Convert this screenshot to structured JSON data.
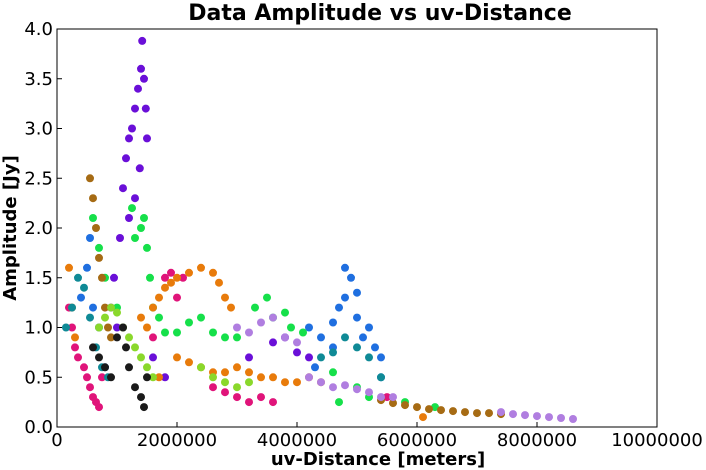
{
  "chart_data": {
    "type": "scatter",
    "title": "Data Amplitude vs uv-Distance",
    "xlabel": "uv-Distance [meters]",
    "ylabel": "Amplitude [Jy]",
    "xlim": [
      0,
      10000000
    ],
    "ylim": [
      0,
      4.0
    ],
    "xticks": [
      "0",
      "2000000",
      "4000000",
      "6000000",
      "8000000",
      "10000000"
    ],
    "xtick_values": [
      0,
      2000000,
      4000000,
      6000000,
      8000000,
      10000000
    ],
    "yticks": [
      "0.0",
      "0.5",
      "1.0",
      "1.5",
      "2.0",
      "2.5",
      "3.0",
      "3.5",
      "4.0"
    ],
    "ytick_values": [
      0,
      0.5,
      1.0,
      1.5,
      2.0,
      2.5,
      3.0,
      3.5,
      4.0
    ],
    "grid": false,
    "legend": "none",
    "series": [
      {
        "color": "#6a0fd8",
        "points": [
          [
            1100000,
            2.4
          ],
          [
            1150000,
            2.7
          ],
          [
            1200000,
            2.9
          ],
          [
            1250000,
            3.0
          ],
          [
            1300000,
            3.2
          ],
          [
            1350000,
            3.4
          ],
          [
            1400000,
            3.6
          ],
          [
            1420000,
            3.88
          ],
          [
            1450000,
            3.5
          ],
          [
            1480000,
            3.2
          ],
          [
            1500000,
            2.9
          ],
          [
            1380000,
            2.6
          ],
          [
            1300000,
            2.3
          ],
          [
            1200000,
            2.1
          ],
          [
            1050000,
            1.9
          ],
          [
            950000,
            1.5
          ],
          [
            900000,
            1.2
          ],
          [
            1000000,
            1.0
          ],
          [
            1600000,
            0.7
          ],
          [
            1800000,
            0.5
          ],
          [
            3600000,
            0.85
          ],
          [
            3800000,
            0.9
          ],
          [
            4000000,
            0.75
          ],
          [
            4200000,
            0.7
          ],
          [
            3200000,
            0.7
          ]
        ]
      },
      {
        "color": "#1f6fe0",
        "points": [
          [
            400000,
            1.3
          ],
          [
            500000,
            1.6
          ],
          [
            550000,
            1.9
          ],
          [
            600000,
            1.2
          ],
          [
            700000,
            1.0
          ],
          [
            800000,
            0.6
          ],
          [
            4200000,
            1.0
          ],
          [
            4400000,
            0.9
          ],
          [
            4600000,
            1.05
          ],
          [
            4700000,
            1.2
          ],
          [
            4800000,
            1.3
          ],
          [
            4900000,
            1.5
          ],
          [
            4800000,
            1.6
          ],
          [
            5000000,
            1.1
          ],
          [
            5100000,
            0.9
          ],
          [
            5200000,
            1.0
          ],
          [
            5300000,
            0.8
          ],
          [
            5400000,
            0.7
          ],
          [
            5000000,
            1.35
          ],
          [
            4600000,
            0.8
          ],
          [
            4300000,
            0.6
          ],
          [
            5400000,
            0.5
          ]
        ]
      },
      {
        "color": "#16e04a",
        "points": [
          [
            600000,
            2.1
          ],
          [
            700000,
            1.8
          ],
          [
            800000,
            1.5
          ],
          [
            1000000,
            1.2
          ],
          [
            1250000,
            2.2
          ],
          [
            1300000,
            1.9
          ],
          [
            1400000,
            2.0
          ],
          [
            1450000,
            2.1
          ],
          [
            1500000,
            1.8
          ],
          [
            1550000,
            1.5
          ],
          [
            1600000,
            1.2
          ],
          [
            1700000,
            1.1
          ],
          [
            1800000,
            0.95
          ],
          [
            2000000,
            0.95
          ],
          [
            2200000,
            1.05
          ],
          [
            2400000,
            1.1
          ],
          [
            2600000,
            0.95
          ],
          [
            2800000,
            0.9
          ],
          [
            3000000,
            0.9
          ],
          [
            3300000,
            1.2
          ],
          [
            3500000,
            1.3
          ],
          [
            3600000,
            1.1
          ],
          [
            3800000,
            1.15
          ],
          [
            3900000,
            1.0
          ],
          [
            4100000,
            0.95
          ],
          [
            4600000,
            0.55
          ],
          [
            5000000,
            0.4
          ],
          [
            5200000,
            0.3
          ],
          [
            5800000,
            0.25
          ],
          [
            6300000,
            0.2
          ],
          [
            4700000,
            0.25
          ]
        ]
      },
      {
        "color": "#e0147a",
        "points": [
          [
            200000,
            1.2
          ],
          [
            250000,
            1.0
          ],
          [
            300000,
            0.8
          ],
          [
            350000,
            0.7
          ],
          [
            450000,
            0.6
          ],
          [
            500000,
            0.5
          ],
          [
            550000,
            0.4
          ],
          [
            600000,
            0.3
          ],
          [
            650000,
            0.25
          ],
          [
            700000,
            0.2
          ],
          [
            750000,
            0.5
          ],
          [
            1800000,
            1.5
          ],
          [
            1900000,
            1.55
          ],
          [
            2000000,
            1.3
          ],
          [
            2100000,
            1.5
          ],
          [
            1600000,
            0.9
          ],
          [
            2600000,
            0.4
          ],
          [
            2800000,
            0.35
          ],
          [
            3000000,
            0.3
          ],
          [
            3200000,
            0.25
          ],
          [
            3400000,
            0.3
          ],
          [
            3600000,
            0.25
          ],
          [
            5500000,
            0.3
          ]
        ]
      },
      {
        "color": "#e87b0b",
        "points": [
          [
            200000,
            1.6
          ],
          [
            250000,
            1.2
          ],
          [
            300000,
            0.9
          ],
          [
            1400000,
            1.1
          ],
          [
            1500000,
            1.0
          ],
          [
            1600000,
            1.2
          ],
          [
            1700000,
            1.3
          ],
          [
            1800000,
            1.4
          ],
          [
            1900000,
            1.45
          ],
          [
            2000000,
            1.5
          ],
          [
            2200000,
            1.55
          ],
          [
            2400000,
            1.6
          ],
          [
            2600000,
            1.55
          ],
          [
            2700000,
            1.45
          ],
          [
            2800000,
            1.3
          ],
          [
            2900000,
            1.2
          ],
          [
            2000000,
            0.7
          ],
          [
            2200000,
            0.65
          ],
          [
            2400000,
            0.6
          ],
          [
            2600000,
            0.55
          ],
          [
            2800000,
            0.55
          ],
          [
            3000000,
            0.6
          ],
          [
            3200000,
            0.55
          ],
          [
            3400000,
            0.5
          ],
          [
            3600000,
            0.5
          ],
          [
            3800000,
            0.45
          ],
          [
            4000000,
            0.45
          ],
          [
            4200000,
            0.5
          ],
          [
            4400000,
            0.45
          ],
          [
            1700000,
            0.5
          ],
          [
            6100000,
            0.1
          ]
        ]
      },
      {
        "color": "#a66b14",
        "points": [
          [
            550000,
            2.5
          ],
          [
            600000,
            2.3
          ],
          [
            650000,
            2.0
          ],
          [
            700000,
            1.7
          ],
          [
            750000,
            1.5
          ],
          [
            800000,
            1.2
          ],
          [
            850000,
            1.0
          ],
          [
            900000,
            0.9
          ],
          [
            5400000,
            0.27
          ],
          [
            5600000,
            0.24
          ],
          [
            5800000,
            0.22
          ],
          [
            6000000,
            0.2
          ],
          [
            6200000,
            0.18
          ],
          [
            6400000,
            0.17
          ],
          [
            6600000,
            0.16
          ],
          [
            6800000,
            0.15
          ],
          [
            7000000,
            0.14
          ],
          [
            7200000,
            0.14
          ],
          [
            7400000,
            0.13
          ]
        ]
      },
      {
        "color": "#b07ee0",
        "points": [
          [
            3000000,
            1.0
          ],
          [
            3200000,
            0.95
          ],
          [
            3400000,
            1.05
          ],
          [
            3600000,
            1.1
          ],
          [
            3800000,
            0.9
          ],
          [
            4000000,
            0.85
          ],
          [
            4200000,
            0.5
          ],
          [
            4400000,
            0.45
          ],
          [
            4600000,
            0.4
          ],
          [
            4800000,
            0.42
          ],
          [
            5000000,
            0.38
          ],
          [
            5200000,
            0.35
          ],
          [
            5400000,
            0.3
          ],
          [
            5600000,
            0.3
          ],
          [
            7400000,
            0.15
          ],
          [
            7600000,
            0.13
          ],
          [
            7800000,
            0.12
          ],
          [
            8000000,
            0.11
          ],
          [
            8200000,
            0.1
          ],
          [
            8400000,
            0.09
          ],
          [
            8600000,
            0.08
          ]
        ]
      },
      {
        "color": "#0f8a96",
        "points": [
          [
            150000,
            1.0
          ],
          [
            250000,
            1.2
          ],
          [
            350000,
            1.5
          ],
          [
            450000,
            1.4
          ],
          [
            550000,
            1.1
          ],
          [
            650000,
            0.8
          ],
          [
            750000,
            0.6
          ],
          [
            850000,
            0.5
          ],
          [
            4400000,
            0.7
          ],
          [
            4600000,
            0.75
          ],
          [
            4800000,
            0.9
          ],
          [
            5000000,
            0.8
          ],
          [
            5200000,
            0.7
          ],
          [
            5400000,
            0.5
          ]
        ]
      },
      {
        "color": "#8ad82b",
        "points": [
          [
            700000,
            1.0
          ],
          [
            800000,
            1.1
          ],
          [
            900000,
            1.2
          ],
          [
            1000000,
            1.15
          ],
          [
            1100000,
            1.0
          ],
          [
            1200000,
            0.9
          ],
          [
            1300000,
            0.8
          ],
          [
            1400000,
            0.7
          ],
          [
            1500000,
            0.6
          ],
          [
            1600000,
            0.5
          ],
          [
            2400000,
            0.6
          ],
          [
            2600000,
            0.5
          ],
          [
            2800000,
            0.45
          ],
          [
            3000000,
            0.4
          ],
          [
            3200000,
            0.45
          ]
        ]
      },
      {
        "color": "#1a1a1a",
        "points": [
          [
            600000,
            0.8
          ],
          [
            700000,
            0.7
          ],
          [
            800000,
            0.6
          ],
          [
            900000,
            0.5
          ],
          [
            1000000,
            0.9
          ],
          [
            1100000,
            1.0
          ],
          [
            1150000,
            0.8
          ],
          [
            1200000,
            0.6
          ],
          [
            1300000,
            0.4
          ],
          [
            1400000,
            0.3
          ],
          [
            1450000,
            0.2
          ],
          [
            1500000,
            0.5
          ]
        ]
      }
    ]
  }
}
